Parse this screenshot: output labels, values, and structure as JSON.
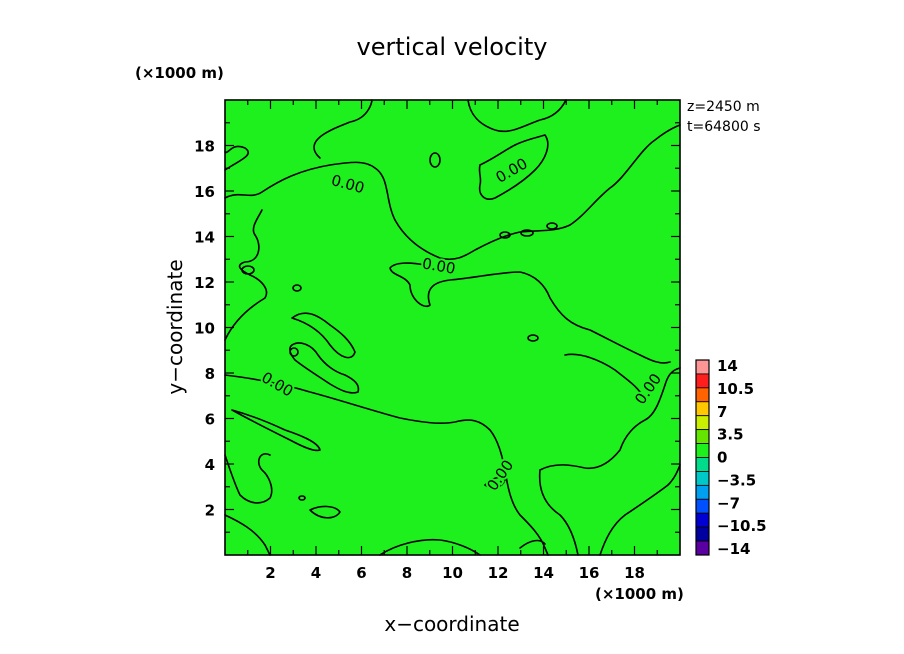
{
  "chart_data": {
    "type": "heatmap",
    "title": "vertical velocity",
    "xlabel": "x−coordinate",
    "ylabel": "y−coordinate",
    "x_unit": "(×1000 m)",
    "y_unit": "(×1000 m)",
    "xlim": [
      0,
      20
    ],
    "ylim": [
      0,
      20
    ],
    "xticks": [
      "2",
      "4",
      "6",
      "8",
      "10",
      "12",
      "14",
      "16",
      "18"
    ],
    "yticks": [
      "2",
      "4",
      "6",
      "8",
      "10",
      "12",
      "14",
      "16",
      "18"
    ],
    "info": [
      "z=2450  m",
      "t=64800  s"
    ],
    "field_fill_color": "#1ef01e",
    "colorbar": {
      "labels": [
        "14",
        "10.5",
        "7",
        "3.5",
        "0",
        "−3.5",
        "−7",
        "−10.5",
        "−14"
      ],
      "colors": [
        "#ff9696",
        "#ff1e1e",
        "#ff6400",
        "#ffc800",
        "#c8f000",
        "#64e600",
        "#1ef01e",
        "#00dc8c",
        "#00c8c8",
        "#00a0f0",
        "#0050ff",
        "#0000d2",
        "#0000a0",
        "#5a00a0"
      ]
    },
    "contour_labels": [
      {
        "text": "0.00",
        "x": 5.4,
        "y": 16.3,
        "angle": 15
      },
      {
        "text": "0.00",
        "x": 12.6,
        "y": 16.9,
        "angle": -30
      },
      {
        "text": "0.00",
        "x": 9.4,
        "y": 12.7,
        "angle": 10
      },
      {
        "text": "0.00",
        "x": 2.3,
        "y": 7.5,
        "angle": 30
      },
      {
        "text": "0.00",
        "x": 18.6,
        "y": 7.3,
        "angle": -55
      },
      {
        "text": "0.00",
        "x": 12.1,
        "y": 3.5,
        "angle": -55
      }
    ],
    "grid": false
  }
}
